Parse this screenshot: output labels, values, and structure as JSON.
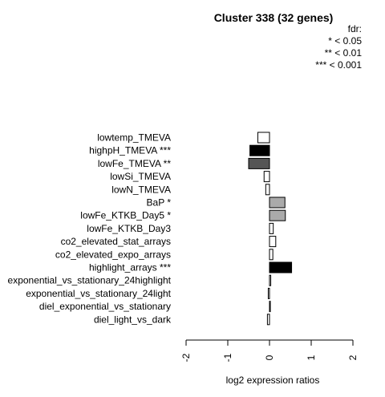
{
  "chart_data": {
    "type": "bar",
    "orientation": "horizontal",
    "title": "Cluster 338 (32 genes)",
    "xlabel": "log2 expression ratios",
    "ylabel": "",
    "xlim": [
      -2,
      2
    ],
    "xticks": [
      "-2",
      "-1",
      "0",
      "1",
      "2"
    ],
    "legend": {
      "position": "top-right",
      "title": "fdr:",
      "entries": [
        "* < 0.05",
        "** < 0.01",
        "*** < 0.001"
      ]
    },
    "categories": [
      "lowtemp_TMEVA",
      "highpH_TMEVA ***",
      "lowFe_TMEVA **",
      "lowSi_TMEVA",
      "lowN_TMEVA",
      "BaP *",
      "lowFe_KTKB_Day5 *",
      "lowFe_KTKB_Day3",
      "co2_elevated_stat_arrays",
      "co2_elevated_expo_arrays",
      "highlight_arrays ***",
      "exponential_vs_stationary_24highlight",
      "exponential_vs_stationary_24light",
      "diel_exponential_vs_stationary",
      "diel_light_vs_dark"
    ],
    "values": [
      -0.28,
      -0.47,
      -0.5,
      -0.13,
      -0.09,
      0.37,
      0.38,
      0.09,
      0.15,
      0.08,
      0.53,
      0.03,
      -0.03,
      0.02,
      -0.05
    ],
    "fills": [
      "#ffffff",
      "#000000",
      "#555555",
      "#ffffff",
      "#ffffff",
      "#aaaaaa",
      "#aaaaaa",
      "#ffffff",
      "#ffffff",
      "#ffffff",
      "#000000",
      "#ffffff",
      "#ffffff",
      "#ffffff",
      "#ffffff"
    ]
  }
}
